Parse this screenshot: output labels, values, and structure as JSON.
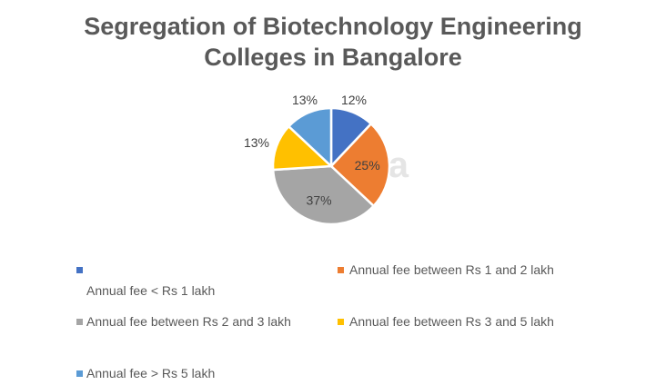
{
  "chart_data": {
    "type": "pie",
    "title": "Segregation of Biotechnology Engineering Colleges in Bangalore",
    "title_lines": [
      "Segregation of Biotechnology Engineering",
      "Colleges in Bangalore"
    ],
    "categories": [
      "Annual fee < Rs 1 lakh",
      "Annual fee between Rs 1 and 2 lakh",
      "Annual fee between Rs 2 and 3 lakh",
      "Annual fee between Rs 3 and 5 lakh",
      "Annual fee > Rs 5 lakh"
    ],
    "values": [
      12,
      25,
      37,
      13,
      13
    ],
    "data_labels": [
      "12%",
      "25%",
      "37%",
      "13%",
      "13%"
    ],
    "colors": [
      "#4472C4",
      "#ED7D31",
      "#A5A5A5",
      "#FFC000",
      "#5B9BD5"
    ],
    "legend_placement": "bottom",
    "watermark": "shiksha"
  }
}
